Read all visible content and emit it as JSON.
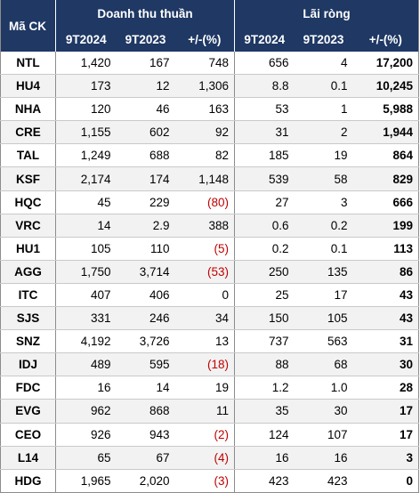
{
  "header": {
    "code_label": "Mã CK",
    "revenue_group": "Doanh thu thuần",
    "profit_group": "Lãi ròng",
    "col_9t2024": "9T2024",
    "col_9t2023": "9T2023",
    "col_change": "+/-(%)"
  },
  "rows": [
    {
      "code": "NTL",
      "rev24": "1,420",
      "rev23": "167",
      "rev_chg": "748",
      "rev_neg": false,
      "np24": "656",
      "np23": "4",
      "np_chg": "17,200"
    },
    {
      "code": "HU4",
      "rev24": "173",
      "rev23": "12",
      "rev_chg": "1,306",
      "rev_neg": false,
      "np24": "8.8",
      "np23": "0.1",
      "np_chg": "10,245"
    },
    {
      "code": "NHA",
      "rev24": "120",
      "rev23": "46",
      "rev_chg": "163",
      "rev_neg": false,
      "np24": "53",
      "np23": "1",
      "np_chg": "5,988"
    },
    {
      "code": "CRE",
      "rev24": "1,155",
      "rev23": "602",
      "rev_chg": "92",
      "rev_neg": false,
      "np24": "31",
      "np23": "2",
      "np_chg": "1,944"
    },
    {
      "code": "TAL",
      "rev24": "1,249",
      "rev23": "688",
      "rev_chg": "82",
      "rev_neg": false,
      "np24": "185",
      "np23": "19",
      "np_chg": "864"
    },
    {
      "code": "KSF",
      "rev24": "2,174",
      "rev23": "174",
      "rev_chg": "1,148",
      "rev_neg": false,
      "np24": "539",
      "np23": "58",
      "np_chg": "829"
    },
    {
      "code": "HQC",
      "rev24": "45",
      "rev23": "229",
      "rev_chg": "(80)",
      "rev_neg": true,
      "np24": "27",
      "np23": "3",
      "np_chg": "666"
    },
    {
      "code": "VRC",
      "rev24": "14",
      "rev23": "2.9",
      "rev_chg": "388",
      "rev_neg": false,
      "np24": "0.6",
      "np23": "0.2",
      "np_chg": "199"
    },
    {
      "code": "HU1",
      "rev24": "105",
      "rev23": "110",
      "rev_chg": "(5)",
      "rev_neg": true,
      "np24": "0.2",
      "np23": "0.1",
      "np_chg": "113"
    },
    {
      "code": "AGG",
      "rev24": "1,750",
      "rev23": "3,714",
      "rev_chg": "(53)",
      "rev_neg": true,
      "np24": "250",
      "np23": "135",
      "np_chg": "86"
    },
    {
      "code": "ITC",
      "rev24": "407",
      "rev23": "406",
      "rev_chg": "0",
      "rev_neg": false,
      "np24": "25",
      "np23": "17",
      "np_chg": "43"
    },
    {
      "code": "SJS",
      "rev24": "331",
      "rev23": "246",
      "rev_chg": "34",
      "rev_neg": false,
      "np24": "150",
      "np23": "105",
      "np_chg": "43"
    },
    {
      "code": "SNZ",
      "rev24": "4,192",
      "rev23": "3,726",
      "rev_chg": "13",
      "rev_neg": false,
      "np24": "737",
      "np23": "563",
      "np_chg": "31"
    },
    {
      "code": "IDJ",
      "rev24": "489",
      "rev23": "595",
      "rev_chg": "(18)",
      "rev_neg": true,
      "np24": "88",
      "np23": "68",
      "np_chg": "30"
    },
    {
      "code": "FDC",
      "rev24": "16",
      "rev23": "14",
      "rev_chg": "19",
      "rev_neg": false,
      "np24": "1.2",
      "np23": "1.0",
      "np_chg": "28"
    },
    {
      "code": "EVG",
      "rev24": "962",
      "rev23": "868",
      "rev_chg": "11",
      "rev_neg": false,
      "np24": "35",
      "np23": "30",
      "np_chg": "17"
    },
    {
      "code": "CEO",
      "rev24": "926",
      "rev23": "943",
      "rev_chg": "(2)",
      "rev_neg": true,
      "np24": "124",
      "np23": "107",
      "np_chg": "17"
    },
    {
      "code": "L14",
      "rev24": "65",
      "rev23": "67",
      "rev_chg": "(4)",
      "rev_neg": true,
      "np24": "16",
      "np23": "16",
      "np_chg": "3"
    },
    {
      "code": "HDG",
      "rev24": "1,965",
      "rev23": "2,020",
      "rev_chg": "(3)",
      "rev_neg": true,
      "np24": "423",
      "np23": "423",
      "np_chg": "0"
    }
  ],
  "colors": {
    "header_bg": "#1f3864",
    "negative_text": "#c00000",
    "alt_row_bg": "#f2f2f2"
  }
}
